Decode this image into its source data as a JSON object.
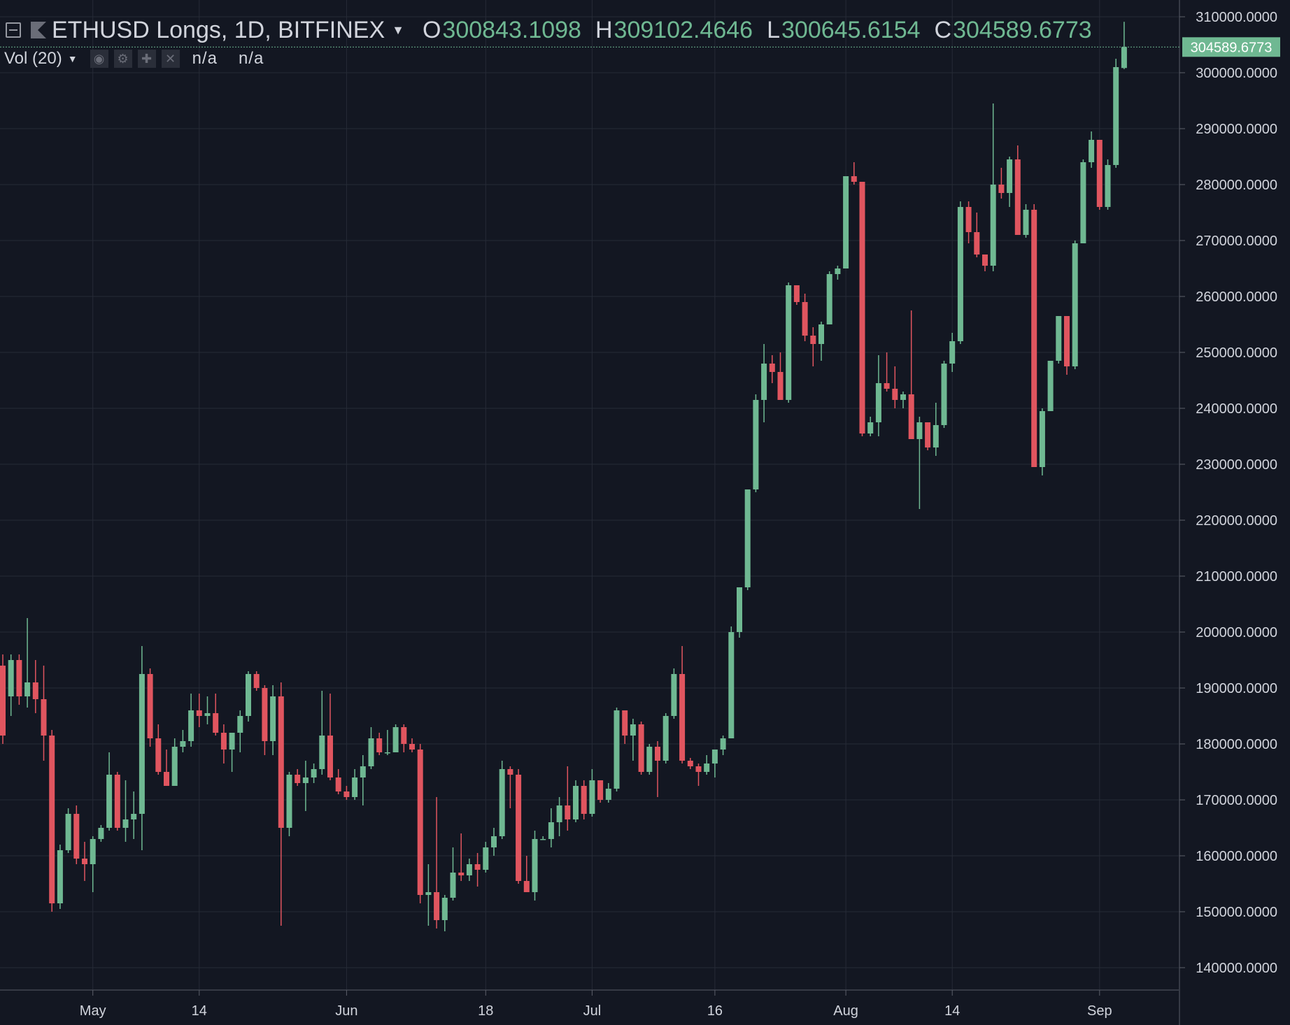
{
  "legend": {
    "symbol": "ETHUSD Longs, 1D, BITFINEX",
    "open_label": "O",
    "open": "300843.1098",
    "high_label": "H",
    "high": "309102.4646",
    "low_label": "L",
    "low": "300645.6154",
    "close_label": "C",
    "close": "304589.6773"
  },
  "volume": {
    "label": "Vol (20)",
    "value1": "n/a",
    "value2": "n/a"
  },
  "colors": {
    "background": "#131722",
    "up": "#6fb892",
    "down": "#e0555f",
    "grid": "#262b36",
    "text": "#d1d4dc"
  },
  "chart_data": {
    "type": "candlestick",
    "title": "ETHUSD Longs, 1D, BITFINEX",
    "ylim": [
      136000,
      313000
    ],
    "yticks": [
      "140000.0000",
      "150000.0000",
      "160000.0000",
      "170000.0000",
      "180000.0000",
      "190000.0000",
      "200000.0000",
      "210000.0000",
      "220000.0000",
      "230000.0000",
      "240000.0000",
      "250000.0000",
      "260000.0000",
      "270000.0000",
      "280000.0000",
      "290000.0000",
      "300000.0000",
      "310000.0000"
    ],
    "xticks": [
      {
        "label": "May",
        "date": "2018-05-01"
      },
      {
        "label": "14",
        "date": "2018-05-14"
      },
      {
        "label": "Jun",
        "date": "2018-06-01"
      },
      {
        "label": "18",
        "date": "2018-06-18"
      },
      {
        "label": "Jul",
        "date": "2018-07-01"
      },
      {
        "label": "16",
        "date": "2018-07-16"
      },
      {
        "label": "Aug",
        "date": "2018-08-01"
      },
      {
        "label": "14",
        "date": "2018-08-14"
      },
      {
        "label": "Sep",
        "date": "2018-09-01"
      }
    ],
    "last_price": "304589.6773",
    "x_start": "2018-04-20",
    "candles": [
      {
        "d": "2018-04-20",
        "o": 194000,
        "h": 196000,
        "l": 180000,
        "c": 181500
      },
      {
        "d": "2018-04-21",
        "o": 188500,
        "h": 196000,
        "l": 185000,
        "c": 195000
      },
      {
        "d": "2018-04-22",
        "o": 195000,
        "h": 196000,
        "l": 187000,
        "c": 188500
      },
      {
        "d": "2018-04-23",
        "o": 188500,
        "h": 202500,
        "l": 186500,
        "c": 191000
      },
      {
        "d": "2018-04-24",
        "o": 191000,
        "h": 195000,
        "l": 185500,
        "c": 188000
      },
      {
        "d": "2018-04-25",
        "o": 188000,
        "h": 194000,
        "l": 177000,
        "c": 181500
      },
      {
        "d": "2018-04-26",
        "o": 181500,
        "h": 182500,
        "l": 150000,
        "c": 151500
      },
      {
        "d": "2018-04-27",
        "o": 151500,
        "h": 162000,
        "l": 150500,
        "c": 161000
      },
      {
        "d": "2018-04-28",
        "o": 161000,
        "h": 168500,
        "l": 160500,
        "c": 167500
      },
      {
        "d": "2018-04-29",
        "o": 167500,
        "h": 169000,
        "l": 158500,
        "c": 159500
      },
      {
        "d": "2018-04-30",
        "o": 159500,
        "h": 162500,
        "l": 155500,
        "c": 158500
      },
      {
        "d": "2018-05-01",
        "o": 158500,
        "h": 163500,
        "l": 153500,
        "c": 163000
      },
      {
        "d": "2018-05-02",
        "o": 163000,
        "h": 165500,
        "l": 162500,
        "c": 165000
      },
      {
        "d": "2018-05-03",
        "o": 165000,
        "h": 178500,
        "l": 164500,
        "c": 174500
      },
      {
        "d": "2018-05-04",
        "o": 174500,
        "h": 175000,
        "l": 164500,
        "c": 165000
      },
      {
        "d": "2018-05-05",
        "o": 165000,
        "h": 173500,
        "l": 162500,
        "c": 166500
      },
      {
        "d": "2018-05-06",
        "o": 166500,
        "h": 171500,
        "l": 163000,
        "c": 167500
      },
      {
        "d": "2018-05-07",
        "o": 167500,
        "h": 197500,
        "l": 161000,
        "c": 192500
      },
      {
        "d": "2018-05-08",
        "o": 192500,
        "h": 193500,
        "l": 179500,
        "c": 181000
      },
      {
        "d": "2018-05-09",
        "o": 181000,
        "h": 183500,
        "l": 174500,
        "c": 175000
      },
      {
        "d": "2018-05-10",
        "o": 175000,
        "h": 179000,
        "l": 172500,
        "c": 172500
      },
      {
        "d": "2018-05-11",
        "o": 172500,
        "h": 181000,
        "l": 172500,
        "c": 179500
      },
      {
        "d": "2018-05-12",
        "o": 179500,
        "h": 182500,
        "l": 178500,
        "c": 180500
      },
      {
        "d": "2018-05-13",
        "o": 180500,
        "h": 189000,
        "l": 179500,
        "c": 186000
      },
      {
        "d": "2018-05-14",
        "o": 186000,
        "h": 189000,
        "l": 183000,
        "c": 185000
      },
      {
        "d": "2018-05-15",
        "o": 185000,
        "h": 188500,
        "l": 183500,
        "c": 185500
      },
      {
        "d": "2018-05-16",
        "o": 185500,
        "h": 189000,
        "l": 181500,
        "c": 182000
      },
      {
        "d": "2018-05-17",
        "o": 182000,
        "h": 183500,
        "l": 176500,
        "c": 179000
      },
      {
        "d": "2018-05-18",
        "o": 179000,
        "h": 182000,
        "l": 175000,
        "c": 182000
      },
      {
        "d": "2018-05-19",
        "o": 182000,
        "h": 186000,
        "l": 178500,
        "c": 185000
      },
      {
        "d": "2018-05-20",
        "o": 185000,
        "h": 193000,
        "l": 184000,
        "c": 192500
      },
      {
        "d": "2018-05-21",
        "o": 192500,
        "h": 193000,
        "l": 189500,
        "c": 190000
      },
      {
        "d": "2018-05-22",
        "o": 190000,
        "h": 190500,
        "l": 178000,
        "c": 180500
      },
      {
        "d": "2018-05-23",
        "o": 180500,
        "h": 190500,
        "l": 178000,
        "c": 188500
      },
      {
        "d": "2018-05-24",
        "o": 188500,
        "h": 191000,
        "l": 147500,
        "c": 165000
      },
      {
        "d": "2018-05-25",
        "o": 165000,
        "h": 175000,
        "l": 163500,
        "c": 174500
      },
      {
        "d": "2018-05-26",
        "o": 174500,
        "h": 175500,
        "l": 172500,
        "c": 173000
      },
      {
        "d": "2018-05-27",
        "o": 173000,
        "h": 177000,
        "l": 168000,
        "c": 174000
      },
      {
        "d": "2018-05-28",
        "o": 174000,
        "h": 176500,
        "l": 173000,
        "c": 175500
      },
      {
        "d": "2018-05-29",
        "o": 175500,
        "h": 189500,
        "l": 174500,
        "c": 181500
      },
      {
        "d": "2018-05-30",
        "o": 181500,
        "h": 189000,
        "l": 173500,
        "c": 174000
      },
      {
        "d": "2018-05-31",
        "o": 174000,
        "h": 175500,
        "l": 171000,
        "c": 171500
      },
      {
        "d": "2018-06-01",
        "o": 171500,
        "h": 172500,
        "l": 170000,
        "c": 170500
      },
      {
        "d": "2018-06-02",
        "o": 170500,
        "h": 175500,
        "l": 170000,
        "c": 174000
      },
      {
        "d": "2018-06-03",
        "o": 174000,
        "h": 178000,
        "l": 169000,
        "c": 176000
      },
      {
        "d": "2018-06-04",
        "o": 176000,
        "h": 183000,
        "l": 175500,
        "c": 181000
      },
      {
        "d": "2018-06-05",
        "o": 181000,
        "h": 182000,
        "l": 178000,
        "c": 178500
      },
      {
        "d": "2018-06-06",
        "o": 178500,
        "h": 182500,
        "l": 178000,
        "c": 178500
      },
      {
        "d": "2018-06-07",
        "o": 178500,
        "h": 183500,
        "l": 178500,
        "c": 183000
      },
      {
        "d": "2018-06-08",
        "o": 183000,
        "h": 183500,
        "l": 178500,
        "c": 180000
      },
      {
        "d": "2018-06-09",
        "o": 180000,
        "h": 181000,
        "l": 178500,
        "c": 179000
      },
      {
        "d": "2018-06-10",
        "o": 179000,
        "h": 180000,
        "l": 151500,
        "c": 153000
      },
      {
        "d": "2018-06-11",
        "o": 153000,
        "h": 158500,
        "l": 147500,
        "c": 153500
      },
      {
        "d": "2018-06-12",
        "o": 153500,
        "h": 170500,
        "l": 147000,
        "c": 148500
      },
      {
        "d": "2018-06-13",
        "o": 148500,
        "h": 153000,
        "l": 146500,
        "c": 152500
      },
      {
        "d": "2018-06-14",
        "o": 152500,
        "h": 161500,
        "l": 152000,
        "c": 157000
      },
      {
        "d": "2018-06-15",
        "o": 157000,
        "h": 164000,
        "l": 155500,
        "c": 156500
      },
      {
        "d": "2018-06-16",
        "o": 156500,
        "h": 159500,
        "l": 155500,
        "c": 158500
      },
      {
        "d": "2018-06-17",
        "o": 158500,
        "h": 160500,
        "l": 154500,
        "c": 157500
      },
      {
        "d": "2018-06-18",
        "o": 157500,
        "h": 162500,
        "l": 157000,
        "c": 161500
      },
      {
        "d": "2018-06-19",
        "o": 161500,
        "h": 165000,
        "l": 160000,
        "c": 163500
      },
      {
        "d": "2018-06-20",
        "o": 163500,
        "h": 177000,
        "l": 163000,
        "c": 175500
      },
      {
        "d": "2018-06-21",
        "o": 175500,
        "h": 176000,
        "l": 168500,
        "c": 174500
      },
      {
        "d": "2018-06-22",
        "o": 174500,
        "h": 175500,
        "l": 155000,
        "c": 155500
      },
      {
        "d": "2018-06-23",
        "o": 155500,
        "h": 160000,
        "l": 153500,
        "c": 153500
      },
      {
        "d": "2018-06-24",
        "o": 153500,
        "h": 164500,
        "l": 152000,
        "c": 163000
      },
      {
        "d": "2018-06-25",
        "o": 163000,
        "h": 163500,
        "l": 163000,
        "c": 163000
      },
      {
        "d": "2018-06-26",
        "o": 163000,
        "h": 168500,
        "l": 161500,
        "c": 166000
      },
      {
        "d": "2018-06-27",
        "o": 166000,
        "h": 170500,
        "l": 163500,
        "c": 169000
      },
      {
        "d": "2018-06-28",
        "o": 169000,
        "h": 176000,
        "l": 164500,
        "c": 166500
      },
      {
        "d": "2018-06-29",
        "o": 166500,
        "h": 173500,
        "l": 166000,
        "c": 172500
      },
      {
        "d": "2018-06-30",
        "o": 172500,
        "h": 173500,
        "l": 166500,
        "c": 167500
      },
      {
        "d": "2018-07-01",
        "o": 167500,
        "h": 175500,
        "l": 167000,
        "c": 173500
      },
      {
        "d": "2018-07-02",
        "o": 173500,
        "h": 173500,
        "l": 169500,
        "c": 170000
      },
      {
        "d": "2018-07-03",
        "o": 170000,
        "h": 173000,
        "l": 169500,
        "c": 172000
      },
      {
        "d": "2018-07-04",
        "o": 172000,
        "h": 186500,
        "l": 171500,
        "c": 186000
      },
      {
        "d": "2018-07-05",
        "o": 186000,
        "h": 186000,
        "l": 180000,
        "c": 181500
      },
      {
        "d": "2018-07-06",
        "o": 181500,
        "h": 184500,
        "l": 177000,
        "c": 183500
      },
      {
        "d": "2018-07-07",
        "o": 183500,
        "h": 184000,
        "l": 174500,
        "c": 175000
      },
      {
        "d": "2018-07-08",
        "o": 175000,
        "h": 180000,
        "l": 174500,
        "c": 179500
      },
      {
        "d": "2018-07-09",
        "o": 179500,
        "h": 180500,
        "l": 170500,
        "c": 177000
      },
      {
        "d": "2018-07-10",
        "o": 177000,
        "h": 185500,
        "l": 176500,
        "c": 185000
      },
      {
        "d": "2018-07-11",
        "o": 185000,
        "h": 193500,
        "l": 184500,
        "c": 192500
      },
      {
        "d": "2018-07-12",
        "o": 192500,
        "h": 197500,
        "l": 176500,
        "c": 177000
      },
      {
        "d": "2018-07-13",
        "o": 177000,
        "h": 177500,
        "l": 175500,
        "c": 176000
      },
      {
        "d": "2018-07-14",
        "o": 176000,
        "h": 176500,
        "l": 172500,
        "c": 175000
      },
      {
        "d": "2018-07-15",
        "o": 175000,
        "h": 178000,
        "l": 174500,
        "c": 176500
      },
      {
        "d": "2018-07-16",
        "o": 176500,
        "h": 179000,
        "l": 174000,
        "c": 179000
      },
      {
        "d": "2018-07-17",
        "o": 179000,
        "h": 181500,
        "l": 178000,
        "c": 181000
      },
      {
        "d": "2018-07-18",
        "o": 181000,
        "h": 201000,
        "l": 181000,
        "c": 200000
      },
      {
        "d": "2018-07-19",
        "o": 200000,
        "h": 208000,
        "l": 199000,
        "c": 208000
      },
      {
        "d": "2018-07-20",
        "o": 208000,
        "h": 225500,
        "l": 207500,
        "c": 225500
      },
      {
        "d": "2018-07-21",
        "o": 225500,
        "h": 242500,
        "l": 225000,
        "c": 241500
      },
      {
        "d": "2018-07-22",
        "o": 241500,
        "h": 251500,
        "l": 237500,
        "c": 248000
      },
      {
        "d": "2018-07-23",
        "o": 248000,
        "h": 249500,
        "l": 244500,
        "c": 246500
      },
      {
        "d": "2018-07-24",
        "o": 246500,
        "h": 250000,
        "l": 241500,
        "c": 241500
      },
      {
        "d": "2018-07-25",
        "o": 241500,
        "h": 262500,
        "l": 241000,
        "c": 262000
      },
      {
        "d": "2018-07-26",
        "o": 262000,
        "h": 262000,
        "l": 258500,
        "c": 259000
      },
      {
        "d": "2018-07-27",
        "o": 259000,
        "h": 260500,
        "l": 252000,
        "c": 253000
      },
      {
        "d": "2018-07-28",
        "o": 253000,
        "h": 254500,
        "l": 247500,
        "c": 251500
      },
      {
        "d": "2018-07-29",
        "o": 251500,
        "h": 255500,
        "l": 248500,
        "c": 255000
      },
      {
        "d": "2018-07-30",
        "o": 255000,
        "h": 264500,
        "l": 255000,
        "c": 264000
      },
      {
        "d": "2018-07-31",
        "o": 264000,
        "h": 265500,
        "l": 263000,
        "c": 265000
      },
      {
        "d": "2018-08-01",
        "o": 265000,
        "h": 281500,
        "l": 265000,
        "c": 281500
      },
      {
        "d": "2018-08-02",
        "o": 281500,
        "h": 284000,
        "l": 280000,
        "c": 280500
      },
      {
        "d": "2018-08-03",
        "o": 280500,
        "h": 280500,
        "l": 235000,
        "c": 235500
      },
      {
        "d": "2018-08-04",
        "o": 235500,
        "h": 238500,
        "l": 235000,
        "c": 237500
      },
      {
        "d": "2018-08-05",
        "o": 237500,
        "h": 249500,
        "l": 235000,
        "c": 244500
      },
      {
        "d": "2018-08-06",
        "o": 244500,
        "h": 250000,
        "l": 243000,
        "c": 243500
      },
      {
        "d": "2018-08-07",
        "o": 243500,
        "h": 247500,
        "l": 240000,
        "c": 241500
      },
      {
        "d": "2018-08-08",
        "o": 241500,
        "h": 243000,
        "l": 240000,
        "c": 242500
      },
      {
        "d": "2018-08-09",
        "o": 242500,
        "h": 257500,
        "l": 234500,
        "c": 234500
      },
      {
        "d": "2018-08-10",
        "o": 234500,
        "h": 238500,
        "l": 222000,
        "c": 237500
      },
      {
        "d": "2018-08-11",
        "o": 237500,
        "h": 237500,
        "l": 232500,
        "c": 233000
      },
      {
        "d": "2018-08-12",
        "o": 233000,
        "h": 241000,
        "l": 231500,
        "c": 237000
      },
      {
        "d": "2018-08-13",
        "o": 237000,
        "h": 248500,
        "l": 236500,
        "c": 248000
      },
      {
        "d": "2018-08-14",
        "o": 248000,
        "h": 253500,
        "l": 246500,
        "c": 252000
      },
      {
        "d": "2018-08-15",
        "o": 252000,
        "h": 277000,
        "l": 251500,
        "c": 276000
      },
      {
        "d": "2018-08-16",
        "o": 276000,
        "h": 277000,
        "l": 269500,
        "c": 271500
      },
      {
        "d": "2018-08-17",
        "o": 271500,
        "h": 275000,
        "l": 267000,
        "c": 267500
      },
      {
        "d": "2018-08-18",
        "o": 267500,
        "h": 267500,
        "l": 264500,
        "c": 265500
      },
      {
        "d": "2018-08-19",
        "o": 265500,
        "h": 294500,
        "l": 264500,
        "c": 280000
      },
      {
        "d": "2018-08-20",
        "o": 280000,
        "h": 283000,
        "l": 277500,
        "c": 278500
      },
      {
        "d": "2018-08-21",
        "o": 278500,
        "h": 285000,
        "l": 276000,
        "c": 284500
      },
      {
        "d": "2018-08-22",
        "o": 284500,
        "h": 287000,
        "l": 271000,
        "c": 271000
      },
      {
        "d": "2018-08-23",
        "o": 271000,
        "h": 276500,
        "l": 270500,
        "c": 275500
      },
      {
        "d": "2018-08-24",
        "o": 275500,
        "h": 276500,
        "l": 229500,
        "c": 229500
      },
      {
        "d": "2018-08-25",
        "o": 229500,
        "h": 240000,
        "l": 228000,
        "c": 239500
      },
      {
        "d": "2018-08-26",
        "o": 239500,
        "h": 248500,
        "l": 239500,
        "c": 248500
      },
      {
        "d": "2018-08-27",
        "o": 248500,
        "h": 256500,
        "l": 248000,
        "c": 256500
      },
      {
        "d": "2018-08-28",
        "o": 256500,
        "h": 256500,
        "l": 246000,
        "c": 247500
      },
      {
        "d": "2018-08-29",
        "o": 247500,
        "h": 270000,
        "l": 247000,
        "c": 269500
      },
      {
        "d": "2018-08-30",
        "o": 269500,
        "h": 284500,
        "l": 269500,
        "c": 284000
      },
      {
        "d": "2018-08-31",
        "o": 284000,
        "h": 289500,
        "l": 283000,
        "c": 288000
      },
      {
        "d": "2018-09-01",
        "o": 288000,
        "h": 288000,
        "l": 275500,
        "c": 276000
      },
      {
        "d": "2018-09-02",
        "o": 276000,
        "h": 284500,
        "l": 275500,
        "c": 283500
      },
      {
        "d": "2018-09-03",
        "o": 283500,
        "h": 302500,
        "l": 283000,
        "c": 301000
      },
      {
        "d": "2018-09-04",
        "o": 300843.1098,
        "h": 309102.4646,
        "l": 300645.6154,
        "c": 304589.6773
      }
    ]
  }
}
